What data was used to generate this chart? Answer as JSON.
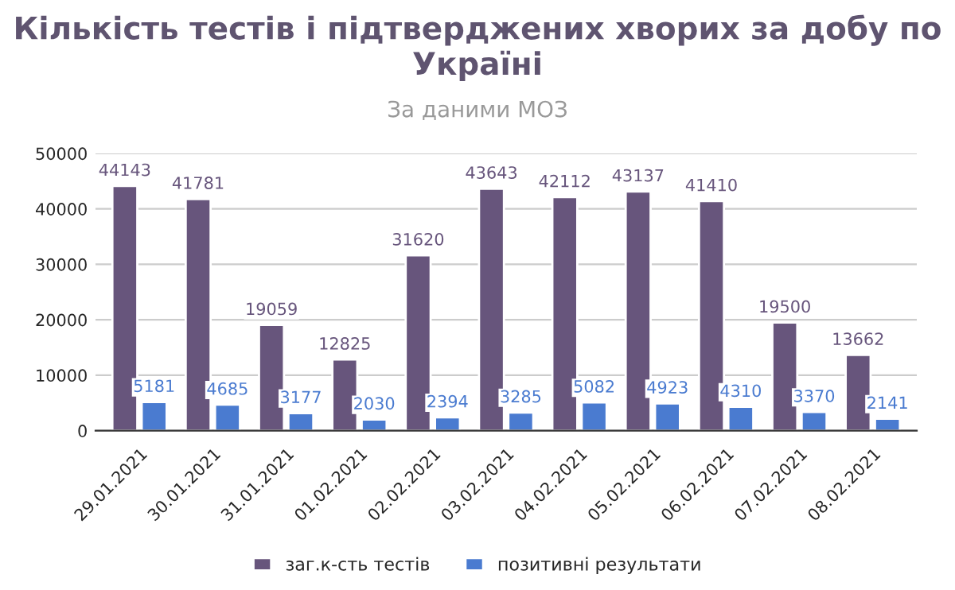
{
  "chart_data": {
    "type": "bar",
    "title": "Кількість тестів і підтверджених хворих за добу по Україні",
    "subtitle": "За даними МОЗ",
    "categories": [
      "29.01.2021",
      "30.01.2021",
      "31.01.2021",
      "01.02.2021",
      "02.02.2021",
      "03.02.2021",
      "04.02.2021",
      "05.02.2021",
      "06.02.2021",
      "07.02.2021",
      "08.02.2021"
    ],
    "series": [
      {
        "name": "заг.к-сть тестів",
        "color": "#67557c",
        "values": [
          44143,
          41781,
          19059,
          12825,
          31620,
          43643,
          42112,
          43137,
          41410,
          19500,
          13662
        ]
      },
      {
        "name": "позитивні результати",
        "color": "#4a7bd0",
        "values": [
          5181,
          4685,
          3177,
          2030,
          2394,
          3285,
          5082,
          4923,
          4310,
          3370,
          2141
        ]
      }
    ],
    "ylim": [
      0,
      50000
    ],
    "yticks": [
      0,
      10000,
      20000,
      30000,
      40000,
      50000
    ],
    "grid": "y",
    "legend": "bottom",
    "data_labels": true
  }
}
